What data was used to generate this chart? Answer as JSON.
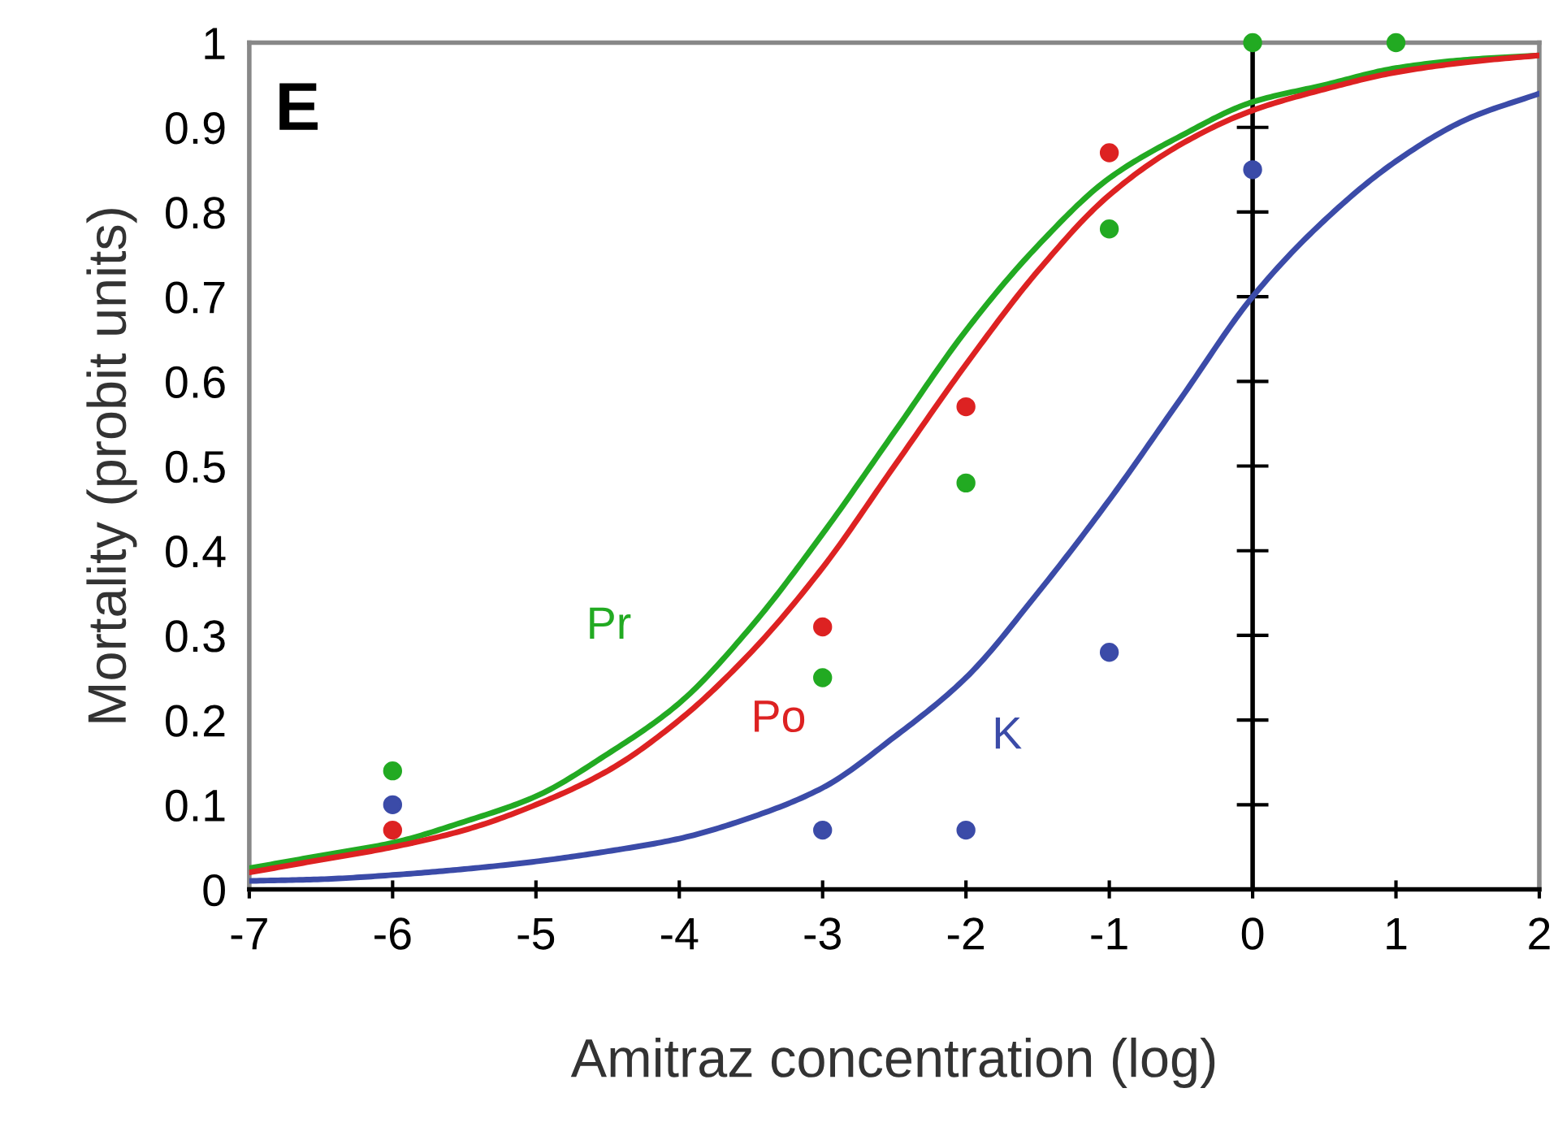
{
  "chart_data": {
    "type": "line",
    "xlabel": "Amitraz concentration (log)",
    "ylabel": "Mortality (probit units)",
    "annotations": [
      "E"
    ],
    "xlim": [
      -7,
      2
    ],
    "xticks": [
      -7,
      -6,
      -5,
      -4,
      -3,
      -2,
      -1,
      0,
      1,
      2
    ],
    "ylim": [
      0,
      1
    ],
    "yticks": [
      0,
      0.1,
      0.2,
      0.3,
      0.4,
      0.5,
      0.6,
      0.7,
      0.8,
      0.9,
      1
    ],
    "grid": false,
    "legend": false,
    "ref_lines": [
      {
        "axis": "x",
        "value": 0,
        "color": "#000000"
      }
    ],
    "series": [
      {
        "name": "Pr",
        "color": "#22aa22",
        "x": [
          -7,
          -6.5,
          -6,
          -5.5,
          -5,
          -4.5,
          -4,
          -3.5,
          -3,
          -2.5,
          -2,
          -1.5,
          -1,
          -0.5,
          0,
          0.5,
          1,
          1.5,
          2
        ],
        "values": [
          0.025,
          0.04,
          0.055,
          0.08,
          0.11,
          0.16,
          0.22,
          0.31,
          0.42,
          0.54,
          0.66,
          0.76,
          0.84,
          0.89,
          0.93,
          0.95,
          0.97,
          0.98,
          0.985
        ]
      },
      {
        "name": "Po",
        "color": "#dd2222",
        "x": [
          -7,
          -6.5,
          -6,
          -5.5,
          -5,
          -4.5,
          -4,
          -3.5,
          -3,
          -2.5,
          -2,
          -1.5,
          -1,
          -0.5,
          0,
          0.5,
          1,
          1.5,
          2
        ],
        "values": [
          0.02,
          0.035,
          0.05,
          0.07,
          0.1,
          0.14,
          0.2,
          0.28,
          0.38,
          0.5,
          0.62,
          0.73,
          0.82,
          0.88,
          0.92,
          0.945,
          0.965,
          0.977,
          0.985
        ]
      },
      {
        "name": "K",
        "color": "#3b4ba8",
        "x": [
          -7,
          -6.5,
          -6,
          -5.5,
          -5,
          -4.5,
          -4,
          -3.5,
          -3,
          -2.5,
          -2,
          -1.5,
          -1,
          -0.5,
          0,
          0.5,
          1,
          1.5,
          2
        ],
        "values": [
          0.01,
          0.012,
          0.017,
          0.024,
          0.033,
          0.045,
          0.06,
          0.085,
          0.12,
          0.18,
          0.25,
          0.35,
          0.46,
          0.58,
          0.7,
          0.79,
          0.86,
          0.91,
          0.94
        ]
      },
      {
        "type": "scatter",
        "marker": "circle",
        "color": "#22aa22",
        "x": [
          -6,
          -3,
          -2,
          -1,
          0,
          1
        ],
        "values": [
          0.14,
          0.25,
          0.48,
          0.78,
          1,
          1
        ]
      },
      {
        "type": "scatter",
        "marker": "circle",
        "color": "#dd2222",
        "x": [
          -6,
          -3,
          -2,
          -1
        ],
        "values": [
          0.07,
          0.31,
          0.57,
          0.87
        ]
      },
      {
        "type": "scatter",
        "marker": "circle",
        "color": "#3b4ba8",
        "x": [
          -6,
          -3,
          -2,
          -1,
          0
        ],
        "values": [
          0.1,
          0.07,
          0.07,
          0.28,
          0.85
        ]
      }
    ]
  }
}
